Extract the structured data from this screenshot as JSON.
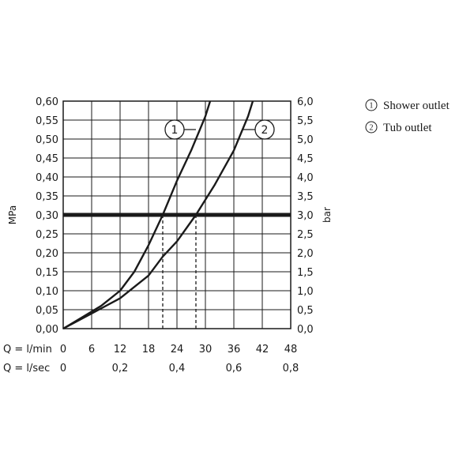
{
  "chart_data": {
    "type": "line",
    "y_left": {
      "label": "MPa",
      "ticks": [
        "0,00",
        "0,05",
        "0,10",
        "0,15",
        "0,20",
        "0,25",
        "0,30",
        "0,35",
        "0,40",
        "0,45",
        "0,50",
        "0,55",
        "0,60"
      ],
      "range": [
        0,
        0.6
      ]
    },
    "y_right": {
      "label": "bar",
      "ticks": [
        "0,0",
        "0,5",
        "1,0",
        "1,5",
        "2,0",
        "2,5",
        "3,0",
        "3,5",
        "4,0",
        "4,5",
        "5,0",
        "5,5",
        "6,0"
      ],
      "range": [
        0,
        6
      ]
    },
    "x_lmin": {
      "label": "Q = l/min",
      "ticks": [
        "0",
        "6",
        "12",
        "18",
        "24",
        "30",
        "36",
        "42",
        "48"
      ],
      "tick_values": [
        0,
        6,
        12,
        18,
        24,
        30,
        36,
        42,
        48
      ],
      "range": [
        0,
        48
      ]
    },
    "x_lsec": {
      "label": "Q = l/sec",
      "ticks": [
        "0",
        "0,2",
        "0,4",
        "0,6",
        "0,8"
      ],
      "tick_values_lmin": [
        0,
        12,
        24,
        36,
        48
      ]
    },
    "grid": true,
    "reference_line": {
      "value_mpa": 0.3
    },
    "series": [
      {
        "marker": "1",
        "name": "Shower outlet",
        "points": [
          [
            0,
            0
          ],
          [
            4,
            0.03
          ],
          [
            8,
            0.06
          ],
          [
            12,
            0.1
          ],
          [
            15,
            0.15
          ],
          [
            18,
            0.22
          ],
          [
            21,
            0.3
          ],
          [
            24,
            0.39
          ],
          [
            27,
            0.47
          ],
          [
            30,
            0.56
          ],
          [
            31,
            0.6
          ]
        ],
        "marker_at": [
          23.5,
          0.525
        ],
        "marker_line": [
          [
            25,
            0.525
          ],
          [
            28,
            0.525
          ]
        ],
        "dashed_drop_lmin": 21
      },
      {
        "marker": "2",
        "name": "Tub outlet",
        "points": [
          [
            0,
            0
          ],
          [
            6,
            0.04
          ],
          [
            12,
            0.08
          ],
          [
            18,
            0.14
          ],
          [
            21,
            0.19
          ],
          [
            24,
            0.23
          ],
          [
            28,
            0.3
          ],
          [
            32,
            0.38
          ],
          [
            36,
            0.47
          ],
          [
            39,
            0.56
          ],
          [
            40,
            0.6
          ]
        ],
        "marker_at": [
          42.5,
          0.525
        ],
        "marker_line": [
          [
            38,
            0.525
          ],
          [
            41,
            0.525
          ]
        ],
        "dashed_drop_lmin": 28
      }
    ],
    "legend": {
      "placement": "top-right",
      "entries": [
        {
          "num": "1",
          "label": "Shower outlet"
        },
        {
          "num": "2",
          "label": "Tub outlet"
        }
      ]
    }
  }
}
